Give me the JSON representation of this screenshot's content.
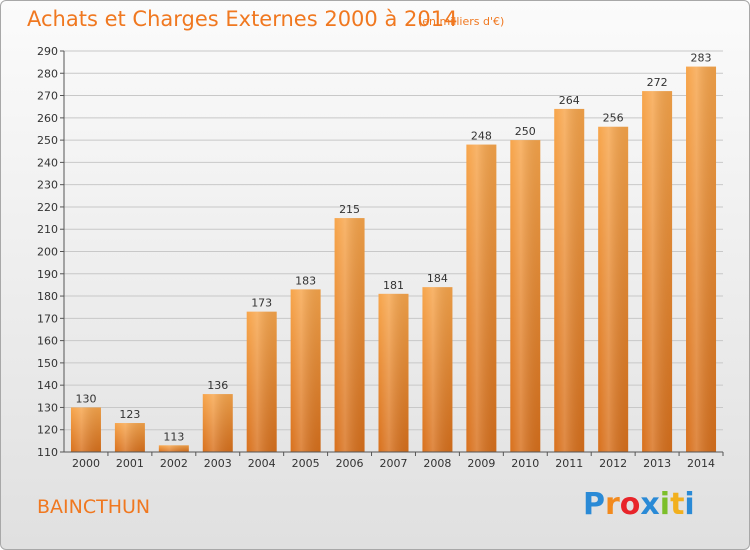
{
  "title": "Achats et Charges Externes 2000 à 2014",
  "subtitle": "(en milliers d'€)",
  "commune": "BAINCTHUN",
  "brand": {
    "letters": [
      {
        "char": "P",
        "color": "#2a8ad6"
      },
      {
        "char": "r",
        "color": "#f28a1e"
      },
      {
        "char": "o",
        "color": "#e8242a"
      },
      {
        "char": "x",
        "color": "#2a8ad6"
      },
      {
        "char": "i",
        "color": "#7cbf2a"
      },
      {
        "char": "t",
        "color": "#f2b01e"
      },
      {
        "char": "i",
        "color": "#2a8ad6"
      }
    ]
  },
  "colors": {
    "bar_top": "#f7a54b",
    "bar_bottom": "#d8701c",
    "grid": "#c8c8c8",
    "axis": "#555555",
    "accent": "#f07820"
  },
  "chart_data": {
    "type": "bar",
    "title": "Achats et Charges Externes 2000 à 2014",
    "subtitle": "(en milliers d'€)",
    "categories": [
      "2000",
      "2001",
      "2002",
      "2003",
      "2004",
      "2005",
      "2006",
      "2007",
      "2008",
      "2009",
      "2010",
      "2011",
      "2012",
      "2013",
      "2014"
    ],
    "values": [
      130,
      123,
      113,
      136,
      173,
      183,
      215,
      181,
      184,
      248,
      250,
      264,
      256,
      272,
      283
    ],
    "ylim": [
      110,
      290
    ],
    "yticks": [
      110,
      120,
      130,
      140,
      150,
      160,
      170,
      180,
      190,
      200,
      210,
      220,
      230,
      240,
      250,
      260,
      270,
      280,
      290
    ],
    "grid": true,
    "legend": "none"
  }
}
